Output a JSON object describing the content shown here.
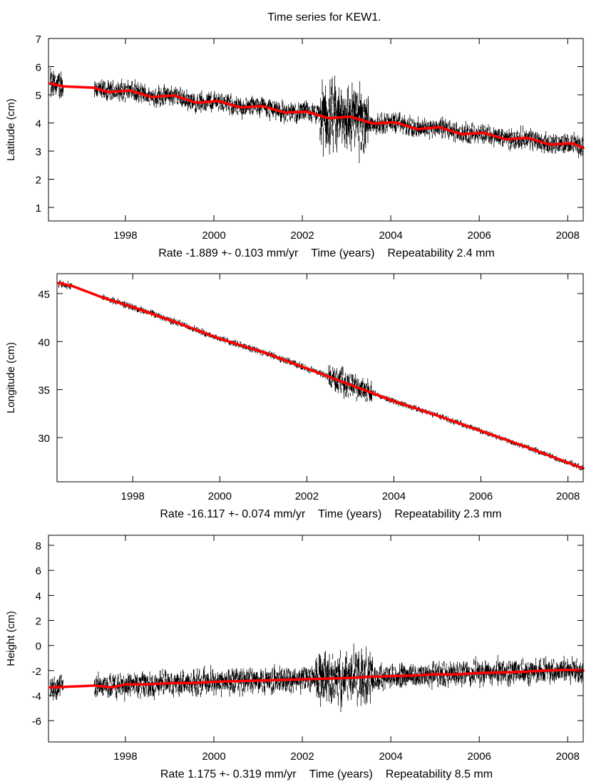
{
  "title": "Time series for KEW1.",
  "colors": {
    "observations": "#000000",
    "model": "#ff0000",
    "axes": "#000000"
  },
  "chart_data": [
    {
      "type": "scatter",
      "ylabel": "Latitude (cm)",
      "xlabel": "Time (years)",
      "rate_text": "Rate -1.889 +- 0.103 mm/yr",
      "repeat_text": "Repeatability 2.4 mm",
      "xlim": [
        1996.26,
        2008.35
      ],
      "ylim": [
        0.52,
        7.0
      ],
      "xticks": [
        1998,
        2000,
        2002,
        2004,
        2006,
        2008
      ],
      "yticks": [
        1,
        2,
        3,
        4,
        5,
        6,
        7
      ],
      "grid": false,
      "model": {
        "x": [
          1996.3,
          1996.6,
          1997.3,
          1997.6,
          1998.1,
          1998.6,
          1999.1,
          1999.6,
          2000.1,
          2000.6,
          2001.1,
          2001.6,
          2002.1,
          2002.6,
          2003.1,
          2003.6,
          2004.1,
          2004.6,
          2005.1,
          2005.6,
          2006.1,
          2006.6,
          2007.1,
          2007.6,
          2008.1,
          2008.35
        ],
        "y": [
          5.4,
          5.3,
          5.25,
          5.1,
          5.15,
          4.92,
          4.98,
          4.72,
          4.78,
          4.55,
          4.6,
          4.37,
          4.4,
          4.17,
          4.22,
          3.98,
          4.02,
          3.78,
          3.85,
          3.6,
          3.65,
          3.42,
          3.47,
          3.23,
          3.28,
          3.12
        ]
      },
      "observation_spread": [
        [
          1996.3,
          1996.6,
          0.5
        ],
        [
          1997.3,
          2002.4,
          0.35
        ],
        [
          2002.4,
          2003.5,
          1.2
        ],
        [
          2003.5,
          2008.35,
          0.35
        ]
      ]
    },
    {
      "type": "scatter",
      "ylabel": "Longitude (cm)",
      "xlabel": "Time (years)",
      "rate_text": "Rate -16.117 +- 0.074 mm/yr",
      "repeat_text": "Repeatability 2.3 mm",
      "xlim": [
        1996.26,
        2008.35
      ],
      "ylim": [
        25.4,
        47.07
      ],
      "xticks": [
        1998,
        2000,
        2002,
        2004,
        2006,
        2008
      ],
      "yticks": [
        30,
        35,
        40,
        45
      ],
      "grid": false,
      "model": {
        "x": [
          1996.3,
          1996.6,
          1997.3,
          1998.0,
          1999.0,
          2000.0,
          2001.0,
          2002.0,
          2003.0,
          2004.0,
          2005.0,
          2006.0,
          2007.0,
          2008.0,
          2008.35
        ],
        "y": [
          46.1,
          45.8,
          44.6,
          43.6,
          42.0,
          40.3,
          38.9,
          37.2,
          35.5,
          33.8,
          32.3,
          30.7,
          29.1,
          27.4,
          26.8
        ]
      },
      "observation_spread": [
        [
          1996.3,
          1996.6,
          0.4
        ],
        [
          1997.3,
          2002.5,
          0.35
        ],
        [
          2002.5,
          2003.5,
          1.3
        ],
        [
          2003.5,
          2008.35,
          0.3
        ]
      ]
    },
    {
      "type": "scatter",
      "ylabel": "Height (cm)",
      "xlabel": "Time (years)",
      "rate_text": "Rate 1.175 +- 0.319 mm/yr",
      "repeat_text": "Repeatability 8.5 mm",
      "xlim": [
        1996.26,
        2008.35
      ],
      "ylim": [
        -7.7,
        8.8
      ],
      "xticks": [
        1998,
        2000,
        2002,
        2004,
        2006,
        2008
      ],
      "yticks": [
        -6,
        -4,
        -2,
        0,
        2,
        4,
        6,
        8
      ],
      "grid": false,
      "model": {
        "x": [
          1996.3,
          1996.6,
          1997.3,
          1997.7,
          1998.0,
          1998.5,
          1999.0,
          1999.5,
          2000.0,
          2000.5,
          2001.0,
          2001.5,
          2002.0,
          2002.5,
          2003.0,
          2003.5,
          2004.0,
          2004.5,
          2005.0,
          2005.5,
          2006.0,
          2006.5,
          2007.0,
          2007.5,
          2008.0,
          2008.35
        ],
        "y": [
          -3.35,
          -3.3,
          -3.2,
          -3.35,
          -3.1,
          -3.1,
          -3.0,
          -3.0,
          -2.9,
          -2.85,
          -2.8,
          -2.75,
          -2.7,
          -2.65,
          -2.6,
          -2.5,
          -2.45,
          -2.4,
          -2.3,
          -2.3,
          -2.2,
          -2.15,
          -2.1,
          -2.0,
          -1.95,
          -2.0
        ]
      },
      "observation_spread": [
        [
          1996.3,
          1996.6,
          0.9
        ],
        [
          1997.3,
          1998.8,
          1.0
        ],
        [
          1998.8,
          2002.3,
          1.0
        ],
        [
          2002.3,
          2003.6,
          2.0
        ],
        [
          2003.6,
          2008.35,
          1.0
        ]
      ]
    }
  ]
}
